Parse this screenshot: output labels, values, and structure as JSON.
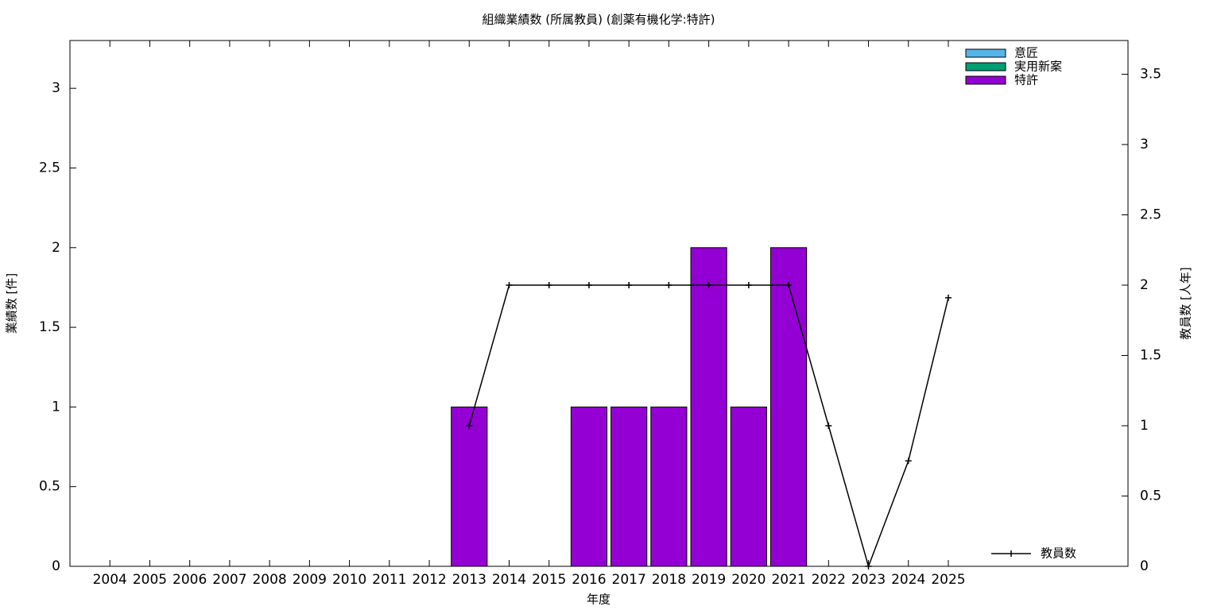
{
  "chart_data": {
    "type": "bar",
    "stacked": true,
    "title": "組織業績数 (所属教員) (創薬有機化学:特許)",
    "x_label": "年度",
    "y_label": "業績数 [件]",
    "y2_label": "教員数 [人年]",
    "categories": [
      "2004",
      "2005",
      "2006",
      "2007",
      "2008",
      "2009",
      "2010",
      "2011",
      "2012",
      "2013",
      "2014",
      "2015",
      "2016",
      "2017",
      "2018",
      "2019",
      "2020",
      "2021",
      "2022",
      "2023",
      "2024",
      "2025"
    ],
    "series": [
      {
        "name": "意匠",
        "type": "bar",
        "color": "#56b4e9",
        "values": [
          0,
          0,
          0,
          0,
          0,
          0,
          0,
          0,
          0,
          0,
          0,
          0,
          0,
          0,
          0,
          0,
          0,
          0,
          0,
          0,
          0,
          0
        ]
      },
      {
        "name": "実用新案",
        "type": "bar",
        "color": "#009e73",
        "values": [
          0,
          0,
          0,
          0,
          0,
          0,
          0,
          0,
          0,
          0,
          0,
          0,
          0,
          0,
          0,
          0,
          0,
          0,
          0,
          0,
          0,
          0
        ]
      },
      {
        "name": "特許",
        "type": "bar",
        "color": "#9400d3",
        "values": [
          0,
          0,
          0,
          0,
          0,
          0,
          0,
          0,
          0,
          1,
          0,
          0,
          1,
          1,
          1,
          2,
          1,
          2,
          0,
          0,
          0,
          0
        ]
      },
      {
        "name": "教員数",
        "type": "line",
        "axis": "y2",
        "color": "#000000",
        "values": [
          null,
          null,
          null,
          null,
          null,
          null,
          null,
          null,
          null,
          1,
          2,
          2,
          2,
          2,
          2,
          2,
          2,
          2,
          1,
          0,
          0.75,
          1.91
        ]
      }
    ],
    "ylim": [
      0,
      3.3
    ],
    "yticks": [
      0,
      0.5,
      1,
      1.5,
      2,
      2.5,
      3
    ],
    "y2lim": [
      0,
      3.74
    ],
    "y2ticks": [
      0,
      0.5,
      1,
      1.5,
      2,
      2.5,
      3,
      3.5
    ],
    "legend": "top-right",
    "line_legend": "bottom-right",
    "grid": false
  }
}
